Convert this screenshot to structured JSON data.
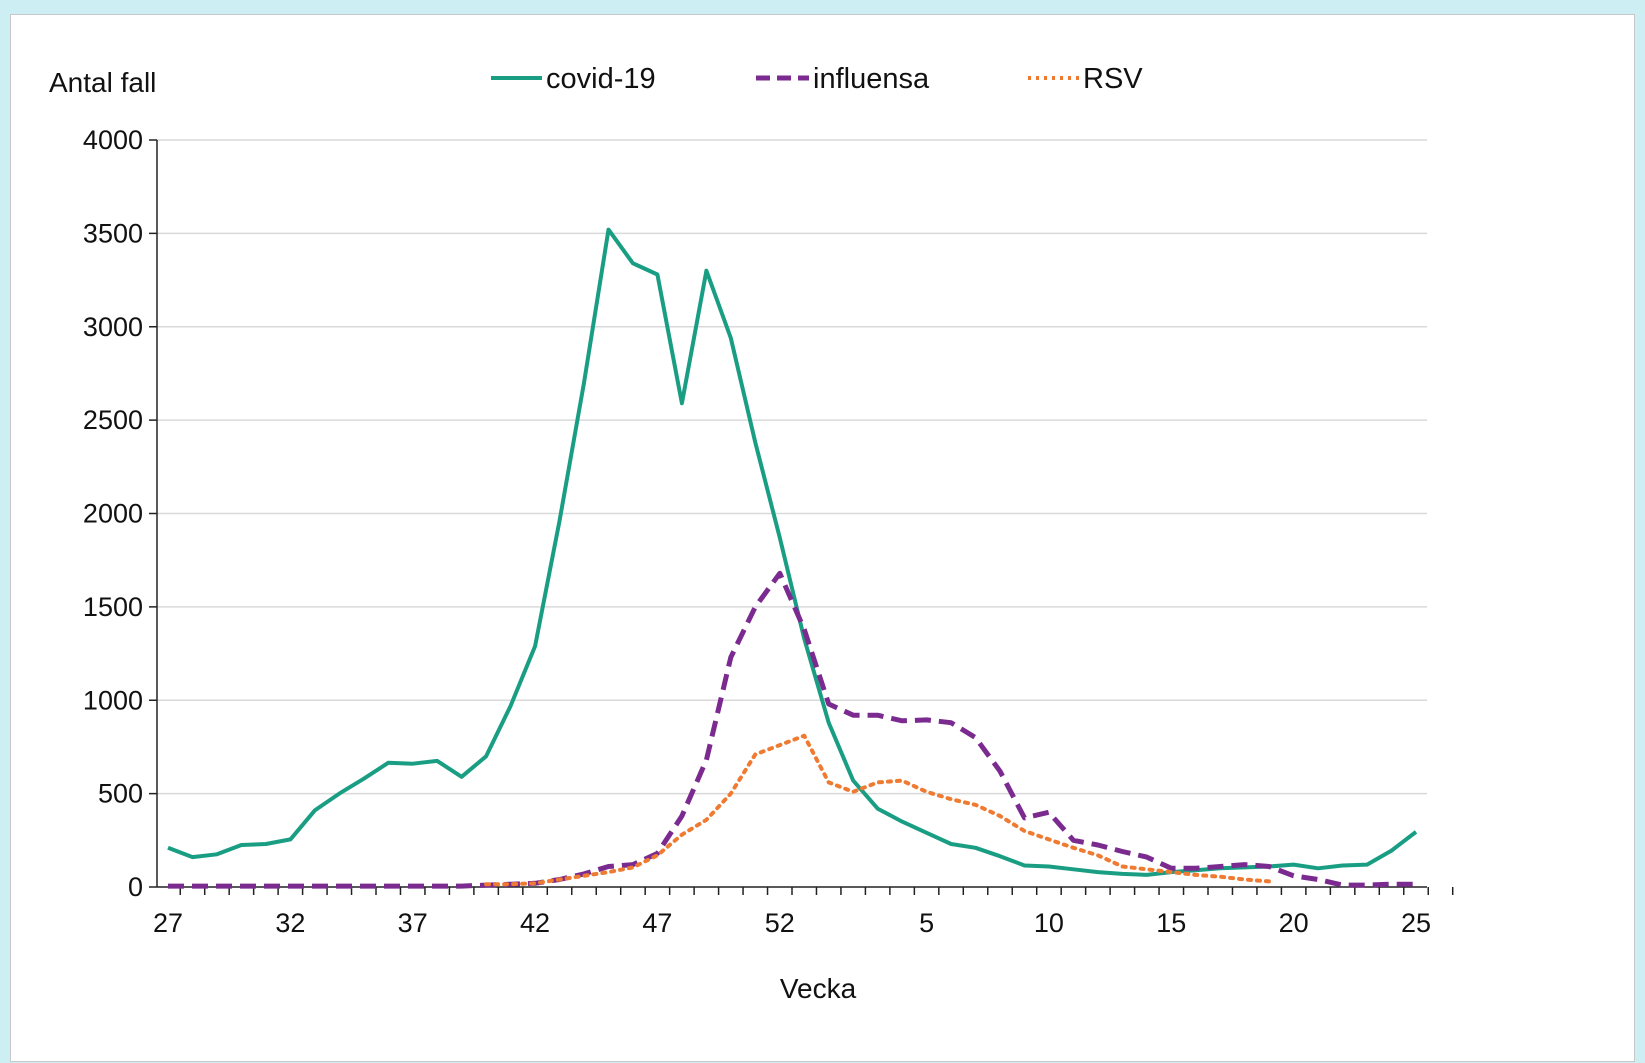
{
  "chart_data": {
    "type": "line",
    "ylabel": "Antal fall",
    "xlabel": "Vecka",
    "ylim": [
      0,
      4000
    ],
    "yticks": [
      0,
      500,
      1000,
      1500,
      2000,
      2500,
      3000,
      3500,
      4000
    ],
    "grid": true,
    "legend_position": "top",
    "x": [
      27,
      28,
      29,
      30,
      31,
      32,
      33,
      34,
      35,
      36,
      37,
      38,
      39,
      40,
      41,
      42,
      43,
      44,
      45,
      46,
      47,
      48,
      49,
      50,
      51,
      52,
      53,
      1,
      2,
      3,
      4,
      5,
      6,
      7,
      8,
      9,
      10,
      11,
      12,
      13,
      14,
      15,
      16,
      17,
      18,
      19,
      20,
      21,
      22,
      23,
      24,
      25,
      26
    ],
    "x_tick_labels": [
      "27",
      "32",
      "37",
      "42",
      "47",
      "52",
      "5",
      "10",
      "15",
      "20",
      "25"
    ],
    "series": [
      {
        "name": "covid-19",
        "color": "#1a9e83",
        "style": "solid",
        "values": [
          210,
          160,
          175,
          225,
          230,
          255,
          410,
          500,
          580,
          665,
          660,
          675,
          590,
          700,
          970,
          1290,
          1960,
          2700,
          3520,
          3340,
          3280,
          2590,
          3300,
          2940,
          2380,
          1870,
          1330,
          880,
          570,
          420,
          350,
          290,
          230,
          210,
          165,
          115,
          110,
          95,
          80,
          70,
          65,
          80,
          90,
          100,
          105,
          110,
          120,
          100,
          115,
          120,
          195,
          295,
          null
        ],
        "values_note_removed": true
      },
      {
        "name": "influensa",
        "color": "#7b2b8f",
        "style": "dashed",
        "values": [
          5,
          5,
          5,
          5,
          5,
          5,
          5,
          5,
          5,
          5,
          5,
          5,
          5,
          10,
          15,
          20,
          40,
          70,
          110,
          120,
          180,
          380,
          680,
          1230,
          1500,
          1680,
          1380,
          980,
          920,
          920,
          890,
          895,
          880,
          800,
          620,
          370,
          400,
          250,
          225,
          190,
          160,
          100,
          100,
          110,
          120,
          110,
          60,
          40,
          10,
          10,
          15,
          15,
          null
        ]
      },
      {
        "name": "RSV",
        "color": "#ef7a31",
        "style": "dotted",
        "values": [
          null,
          null,
          null,
          null,
          null,
          null,
          null,
          null,
          null,
          null,
          null,
          null,
          null,
          15,
          15,
          20,
          40,
          60,
          80,
          105,
          170,
          280,
          360,
          500,
          710,
          760,
          810,
          560,
          510,
          560,
          570,
          510,
          470,
          440,
          380,
          300,
          255,
          210,
          170,
          110,
          95,
          80,
          65,
          55,
          40,
          30,
          null,
          null,
          null,
          null,
          null,
          null,
          null
        ]
      }
    ]
  },
  "legend": {
    "items": [
      "covid-19",
      "influensa",
      "RSV"
    ]
  }
}
